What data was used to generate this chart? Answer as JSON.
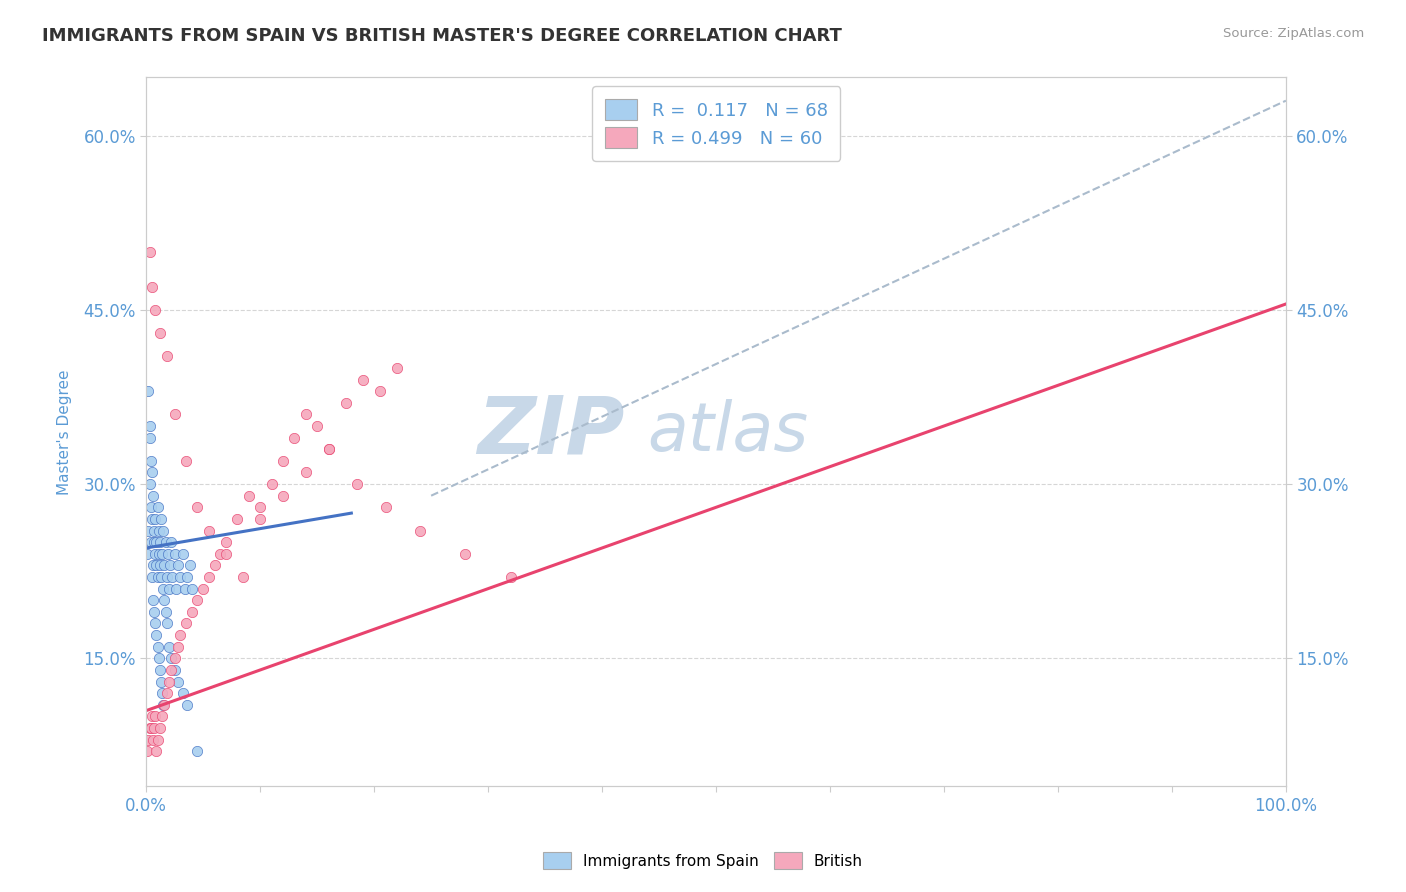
{
  "title": "IMMIGRANTS FROM SPAIN VS BRITISH MASTER'S DEGREE CORRELATION CHART",
  "source_text": "Source: ZipAtlas.com",
  "ylabel": "Master's Degree",
  "x_min": 0.0,
  "x_max": 1.0,
  "y_min": 0.04,
  "y_max": 0.65,
  "x_ticks": [
    0.0,
    0.1,
    0.2,
    0.3,
    0.4,
    0.5,
    0.6,
    0.7,
    0.8,
    0.9,
    1.0
  ],
  "y_ticks": [
    0.15,
    0.3,
    0.45,
    0.6
  ],
  "y_tick_labels": [
    "15.0%",
    "30.0%",
    "45.0%",
    "60.0%"
  ],
  "blue_color": "#A8CFEF",
  "pink_color": "#F5A8BC",
  "blue_line_color": "#4472C4",
  "pink_line_color": "#E8436E",
  "dashed_line_color": "#AABBCC",
  "watermark_color": "#C8D8E8",
  "legend_R1": "R =  0.117",
  "legend_N1": "N = 68",
  "legend_R2": "R = 0.499",
  "legend_N2": "N = 60",
  "background_color": "#FFFFFF",
  "grid_color": "#CCCCCC",
  "title_color": "#333333",
  "axis_label_color": "#5B9BD5",
  "tick_label_color": "#5B9BD5",
  "blue_line_x0": 0.0,
  "blue_line_x1": 0.18,
  "blue_line_y0": 0.245,
  "blue_line_y1": 0.275,
  "pink_line_x0": 0.0,
  "pink_line_x1": 1.0,
  "pink_line_y0": 0.105,
  "pink_line_y1": 0.455,
  "dash_line_x0": 0.25,
  "dash_line_x1": 1.0,
  "dash_line_y0": 0.29,
  "dash_line_y1": 0.63,
  "blue_scatter_x": [
    0.001,
    0.002,
    0.003,
    0.003,
    0.004,
    0.004,
    0.005,
    0.005,
    0.006,
    0.006,
    0.007,
    0.007,
    0.008,
    0.008,
    0.009,
    0.009,
    0.01,
    0.01,
    0.011,
    0.011,
    0.012,
    0.012,
    0.013,
    0.013,
    0.014,
    0.015,
    0.015,
    0.016,
    0.017,
    0.018,
    0.019,
    0.02,
    0.021,
    0.022,
    0.023,
    0.025,
    0.026,
    0.028,
    0.03,
    0.032,
    0.034,
    0.036,
    0.038,
    0.04,
    0.002,
    0.003,
    0.004,
    0.005,
    0.006,
    0.007,
    0.008,
    0.009,
    0.01,
    0.011,
    0.012,
    0.013,
    0.014,
    0.015,
    0.016,
    0.017,
    0.018,
    0.02,
    0.022,
    0.025,
    0.028,
    0.032,
    0.036,
    0.045
  ],
  "blue_scatter_y": [
    0.24,
    0.26,
    0.3,
    0.34,
    0.25,
    0.28,
    0.22,
    0.27,
    0.23,
    0.29,
    0.25,
    0.26,
    0.24,
    0.27,
    0.23,
    0.25,
    0.22,
    0.28,
    0.24,
    0.26,
    0.25,
    0.23,
    0.27,
    0.22,
    0.24,
    0.21,
    0.26,
    0.23,
    0.25,
    0.22,
    0.24,
    0.21,
    0.23,
    0.25,
    0.22,
    0.24,
    0.21,
    0.23,
    0.22,
    0.24,
    0.21,
    0.22,
    0.23,
    0.21,
    0.38,
    0.35,
    0.32,
    0.31,
    0.2,
    0.19,
    0.18,
    0.17,
    0.16,
    0.15,
    0.14,
    0.13,
    0.12,
    0.11,
    0.2,
    0.19,
    0.18,
    0.16,
    0.15,
    0.14,
    0.13,
    0.12,
    0.11,
    0.07
  ],
  "pink_scatter_x": [
    0.001,
    0.002,
    0.003,
    0.004,
    0.005,
    0.006,
    0.007,
    0.008,
    0.009,
    0.01,
    0.012,
    0.014,
    0.016,
    0.018,
    0.02,
    0.022,
    0.025,
    0.028,
    0.03,
    0.035,
    0.04,
    0.045,
    0.05,
    0.055,
    0.06,
    0.065,
    0.07,
    0.08,
    0.09,
    0.1,
    0.11,
    0.12,
    0.13,
    0.14,
    0.15,
    0.16,
    0.175,
    0.19,
    0.205,
    0.22,
    0.003,
    0.005,
    0.008,
    0.012,
    0.018,
    0.025,
    0.035,
    0.045,
    0.055,
    0.07,
    0.085,
    0.1,
    0.12,
    0.14,
    0.16,
    0.185,
    0.21,
    0.24,
    0.28,
    0.32
  ],
  "pink_scatter_y": [
    0.07,
    0.08,
    0.09,
    0.09,
    0.1,
    0.08,
    0.09,
    0.1,
    0.07,
    0.08,
    0.09,
    0.1,
    0.11,
    0.12,
    0.13,
    0.14,
    0.15,
    0.16,
    0.17,
    0.18,
    0.19,
    0.2,
    0.21,
    0.22,
    0.23,
    0.24,
    0.25,
    0.27,
    0.29,
    0.28,
    0.3,
    0.32,
    0.34,
    0.36,
    0.35,
    0.33,
    0.37,
    0.39,
    0.38,
    0.4,
    0.5,
    0.47,
    0.45,
    0.43,
    0.41,
    0.36,
    0.32,
    0.28,
    0.26,
    0.24,
    0.22,
    0.27,
    0.29,
    0.31,
    0.33,
    0.3,
    0.28,
    0.26,
    0.24,
    0.22
  ]
}
